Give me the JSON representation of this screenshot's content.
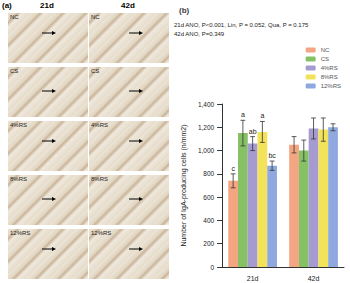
{
  "panel_a": {
    "label": "(a)",
    "columns": [
      "21d",
      "42d"
    ],
    "rows": [
      "NC",
      "CS",
      "4%RS",
      "8%RS",
      "12%RS"
    ]
  },
  "chart_data": {
    "type": "bar",
    "title": "(b)",
    "annotations": [
      "21d ANO, P<0.001, Lin, P = 0.052, Qua, P = 0.175",
      "42d ANO, P=0.349"
    ],
    "y_label": "Number of IgA-producing cells (n/mm2)",
    "categories": [
      "21d",
      "42d"
    ],
    "series": [
      {
        "name": "NC",
        "color": "#f4a582",
        "values": [
          740,
          1050
        ],
        "errors": [
          60,
          70
        ],
        "letters": [
          "c",
          null
        ]
      },
      {
        "name": "CS",
        "color": "#86c166",
        "values": [
          1150,
          1000
        ],
        "errors": [
          110,
          90
        ],
        "letters": [
          "a",
          null
        ]
      },
      {
        "name": "4%RS",
        "color": "#a59bd1",
        "values": [
          1060,
          1190
        ],
        "errors": [
          60,
          90
        ],
        "letters": [
          "ab",
          null
        ]
      },
      {
        "name": "8%RS",
        "color": "#f2e35b",
        "values": [
          1160,
          1180
        ],
        "errors": [
          90,
          100
        ],
        "letters": [
          "a",
          null
        ]
      },
      {
        "name": "12%RS",
        "color": "#8fa8e0",
        "values": [
          870,
          1200
        ],
        "errors": [
          40,
          30
        ],
        "letters": [
          "bc",
          null
        ]
      }
    ],
    "ylim": [
      0,
      1400
    ],
    "yticks": [
      0,
      200,
      400,
      600,
      800,
      1000,
      1200,
      1400
    ],
    "legend": "top-right",
    "grid": false
  }
}
